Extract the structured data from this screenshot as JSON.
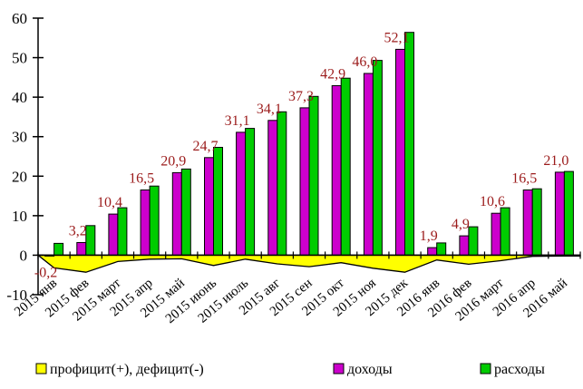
{
  "chart_data": {
    "type": "bar",
    "categories": [
      "2015 янв",
      "2015 фев",
      "2015 март",
      "2015 апр",
      "2015 май",
      "2015 июнь",
      "2015 июль",
      "2015 авг",
      "2015 сен",
      "2015 окт",
      "2015 ноя",
      "2015 дек",
      "2016 янв",
      "2016 фев",
      "2016 март",
      "2016 апр",
      "2016 май"
    ],
    "series": [
      {
        "name": "профицит(+), дефицит(-)",
        "type": "area",
        "color": "#ffff00",
        "values": [
          -3.2,
          -4.3,
          -1.6,
          -1.0,
          -0.9,
          -2.6,
          -1.0,
          -2.2,
          -2.9,
          -1.9,
          -3.3,
          -4.3,
          -1.2,
          -2.3,
          -1.4,
          -0.3,
          -0.2
        ]
      },
      {
        "name": "доходы",
        "type": "bar",
        "color": "#cc00cc",
        "values": [
          -0.2,
          3.2,
          10.4,
          16.5,
          20.9,
          24.7,
          31.1,
          34.1,
          37.3,
          42.9,
          46.0,
          52.1,
          1.9,
          4.9,
          10.6,
          16.5,
          21.0
        ],
        "labels": [
          "-0,2",
          "3,2",
          "10,4",
          "16,5",
          "20,9",
          "24,7",
          "31,1",
          "34,1",
          "37,3",
          "42,9",
          "46,0",
          "52,1",
          "1,9",
          "4,9",
          "10,6",
          "16,5",
          "21,0"
        ]
      },
      {
        "name": "расходы",
        "type": "bar",
        "color": "#00cc00",
        "values": [
          3.0,
          7.5,
          12.0,
          17.5,
          21.8,
          27.3,
          32.1,
          36.3,
          40.2,
          44.8,
          49.3,
          56.4,
          3.1,
          7.2,
          12.0,
          16.8,
          21.2
        ]
      }
    ],
    "ylim": [
      -10,
      60
    ],
    "yticks": [
      -10,
      0,
      10,
      20,
      30,
      40,
      50,
      60
    ],
    "legend_position": "bottom",
    "grid": false
  }
}
